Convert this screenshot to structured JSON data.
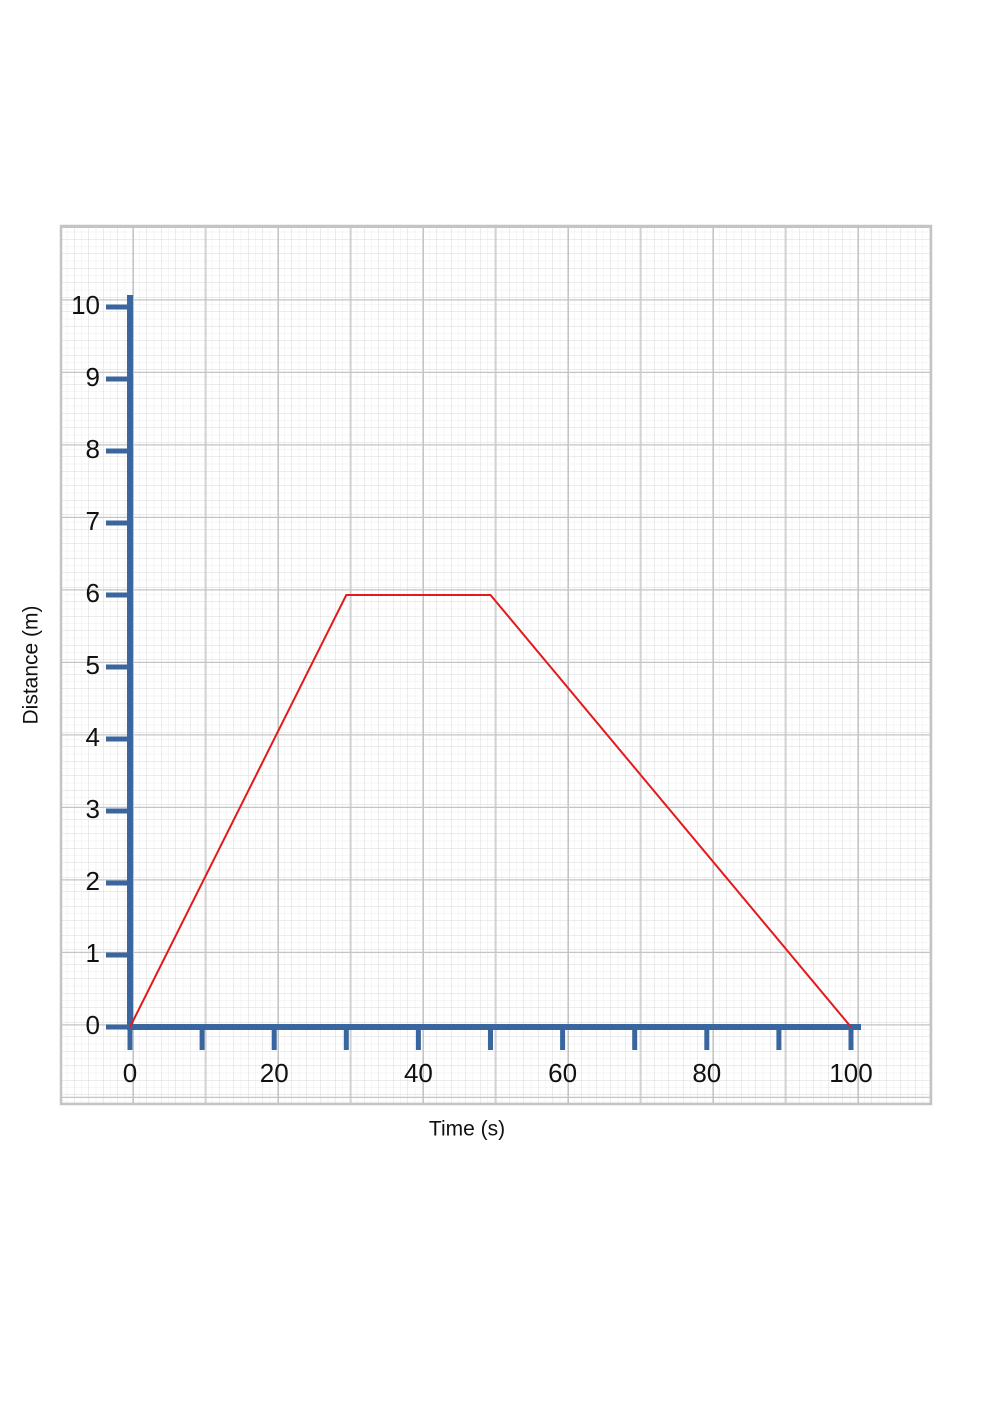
{
  "chart_data": {
    "type": "line",
    "x_label": "Time (s)",
    "y_label": "Distance (m)",
    "x": [
      0,
      30,
      50,
      100
    ],
    "series": [
      {
        "color": "#e31a1c",
        "values": [
          0,
          6,
          6,
          0
        ]
      }
    ],
    "xlim": [
      0,
      100
    ],
    "ylim": [
      0,
      10
    ],
    "xticks": [
      0,
      20,
      40,
      60,
      80,
      100
    ],
    "xminor_ticks": [
      10,
      30,
      50,
      70,
      90
    ],
    "yticks": [
      0,
      1,
      2,
      3,
      4,
      5,
      6,
      7,
      8,
      9,
      10
    ],
    "axis_color": "#3a66a0",
    "grid": true
  }
}
